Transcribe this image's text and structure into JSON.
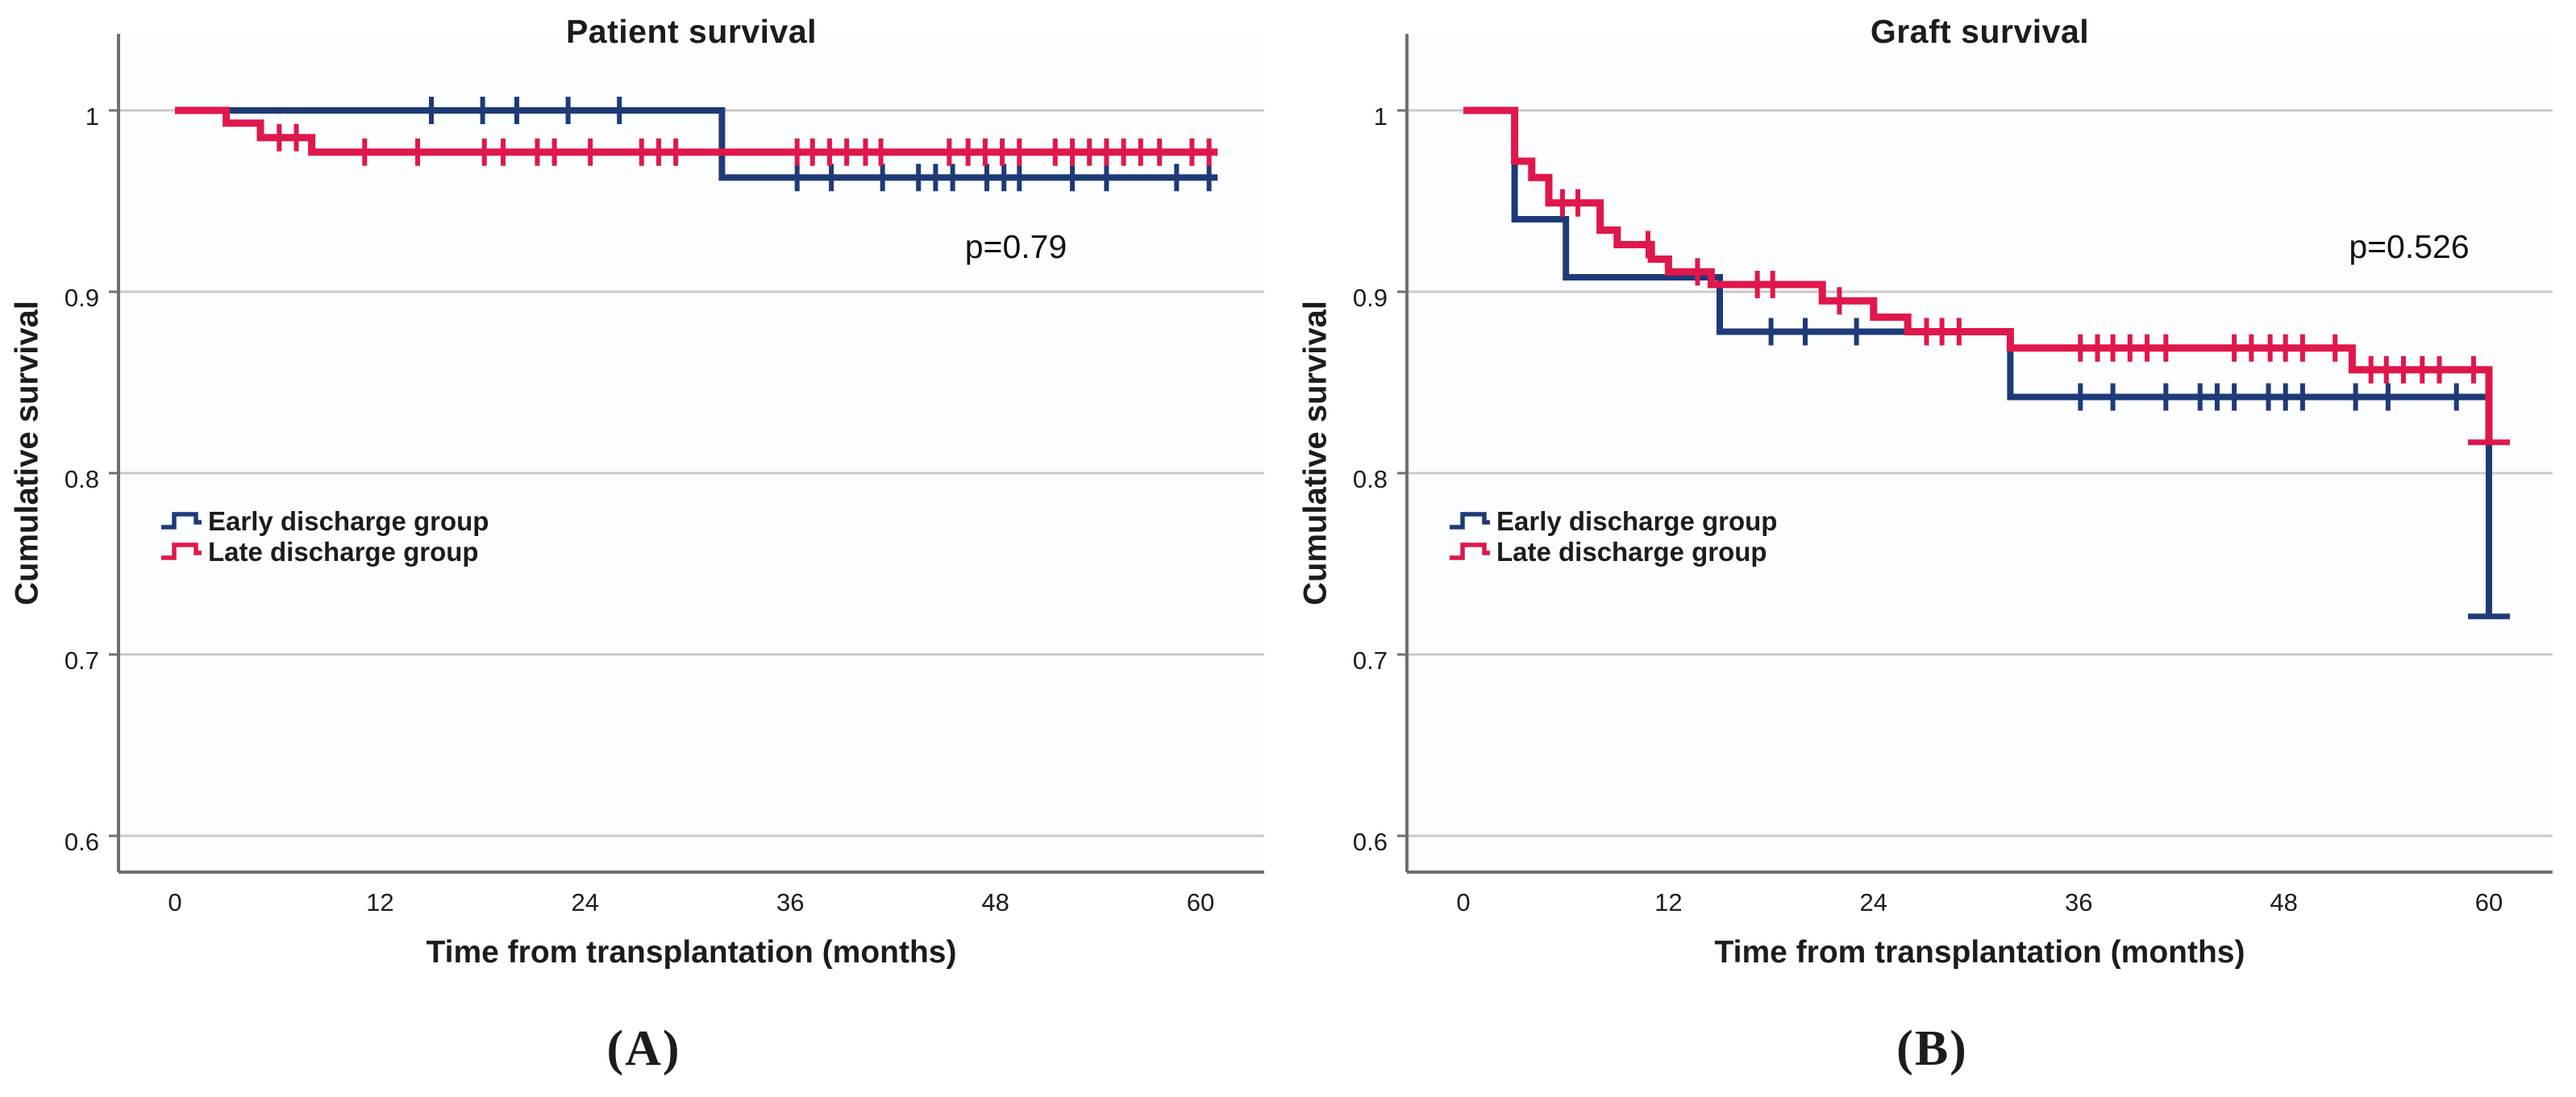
{
  "figure": {
    "colors": {
      "early": "#1e3a78",
      "late": "#e0174b",
      "grid": "#c9c9c9",
      "axis": "#6f6f6f",
      "text": "#1c1c1c",
      "plot_bg": "#fcfdff"
    }
  },
  "chart_data": [
    {
      "type": "line",
      "subtype": "kaplan-meier-step",
      "title": "Patient survival",
      "xlabel": "Time from transplantation (months)",
      "ylabel": "Cumulative survival",
      "annotation": "p=0.79",
      "panel_label": "(A)",
      "grid": "horizontal",
      "legend_position": "left-middle",
      "xlim": [
        -3.3,
        63.7
      ],
      "ylim": [
        0.58,
        1.042
      ],
      "xticks": [
        0,
        12,
        24,
        36,
        48,
        60
      ],
      "xtick_labels": [
        "0",
        "12",
        "24",
        "36",
        "48",
        "60"
      ],
      "yticks": [
        1.0,
        0.9,
        0.8,
        0.7,
        0.6
      ],
      "ytick_labels": [
        "1",
        "0.9",
        "0.8",
        "0.7",
        "0.6"
      ],
      "series": [
        {
          "name": "Early discharge group",
          "color_key": "early",
          "steps": [
            [
              0,
              1.0
            ],
            [
              32,
              0.963
            ]
          ],
          "end": 61,
          "censors": [
            [
              15,
              1.0
            ],
            [
              18,
              1.0
            ],
            [
              20,
              1.0
            ],
            [
              23,
              1.0
            ],
            [
              26,
              1.0
            ],
            [
              36.4,
              0.963
            ],
            [
              38.4,
              0.963
            ],
            [
              41.4,
              0.963
            ],
            [
              43.5,
              0.963
            ],
            [
              44.5,
              0.963
            ],
            [
              45.5,
              0.963
            ],
            [
              47.5,
              0.963
            ],
            [
              48.5,
              0.963
            ],
            [
              49.4,
              0.963
            ],
            [
              52.5,
              0.963
            ],
            [
              54.5,
              0.963
            ],
            [
              58.6,
              0.963
            ],
            [
              60.5,
              0.963
            ]
          ]
        },
        {
          "name": "Late discharge group",
          "color_key": "late",
          "steps": [
            [
              0,
              1.0
            ],
            [
              3,
              0.993
            ],
            [
              5,
              0.985
            ],
            [
              8,
              0.977
            ]
          ],
          "end": 61,
          "censors": [
            [
              6.1,
              0.985
            ],
            [
              7.1,
              0.985
            ],
            [
              11.1,
              0.977
            ],
            [
              14.2,
              0.977
            ],
            [
              18.1,
              0.977
            ],
            [
              19.2,
              0.977
            ],
            [
              21.2,
              0.977
            ],
            [
              22.2,
              0.977
            ],
            [
              24.3,
              0.977
            ],
            [
              27.3,
              0.977
            ],
            [
              28.3,
              0.977
            ],
            [
              29.3,
              0.977
            ],
            [
              36.4,
              0.977
            ],
            [
              37.3,
              0.977
            ],
            [
              38.3,
              0.977
            ],
            [
              39.3,
              0.977
            ],
            [
              40.4,
              0.977
            ],
            [
              41.3,
              0.977
            ],
            [
              45.3,
              0.977
            ],
            [
              46.4,
              0.977
            ],
            [
              47.4,
              0.977
            ],
            [
              48.4,
              0.977
            ],
            [
              49.4,
              0.977
            ],
            [
              51.5,
              0.977
            ],
            [
              52.5,
              0.977
            ],
            [
              53.5,
              0.977
            ],
            [
              54.5,
              0.977
            ],
            [
              55.5,
              0.977
            ],
            [
              56.5,
              0.977
            ],
            [
              57.6,
              0.977
            ],
            [
              59.5,
              0.977
            ],
            [
              60.5,
              0.977
            ]
          ]
        }
      ]
    },
    {
      "type": "line",
      "subtype": "kaplan-meier-step",
      "title": "Graft survival",
      "xlabel": "Time from transplantation (months)",
      "ylabel": "Cumulative survival",
      "annotation": "p=0.526",
      "panel_label": "(B)",
      "grid": "horizontal",
      "legend_position": "left-middle",
      "xlim": [
        -3.3,
        63.7
      ],
      "ylim": [
        0.58,
        1.042
      ],
      "xticks": [
        0,
        12,
        24,
        36,
        48,
        60
      ],
      "xtick_labels": [
        "0",
        "12",
        "24",
        "36",
        "48",
        "60"
      ],
      "yticks": [
        1.0,
        0.9,
        0.8,
        0.7,
        0.6
      ],
      "ytick_labels": [
        "1",
        "0.9",
        "0.8",
        "0.7",
        "0.6"
      ],
      "series": [
        {
          "name": "Early discharge group",
          "color_key": "early",
          "steps": [
            [
              0,
              1.0
            ],
            [
              3,
              0.94
            ],
            [
              6,
              0.908
            ],
            [
              15,
              0.878
            ],
            [
              32,
              0.842
            ]
          ],
          "end": 60,
          "drop_to": 0.721,
          "censors": [
            [
              18,
              0.878
            ],
            [
              20,
              0.878
            ],
            [
              23,
              0.878
            ],
            [
              36.1,
              0.842
            ],
            [
              38,
              0.842
            ],
            [
              41.1,
              0.842
            ],
            [
              43.1,
              0.842
            ],
            [
              44.1,
              0.842
            ],
            [
              45.1,
              0.842
            ],
            [
              47.1,
              0.842
            ],
            [
              48.1,
              0.842
            ],
            [
              49.1,
              0.842
            ],
            [
              52.2,
              0.842
            ],
            [
              54.1,
              0.842
            ],
            [
              58.1,
              0.842
            ]
          ]
        },
        {
          "name": "Late discharge group",
          "color_key": "late",
          "steps": [
            [
              0,
              1.0
            ],
            [
              3,
              0.972
            ],
            [
              4,
              0.963
            ],
            [
              5,
              0.949
            ],
            [
              8,
              0.934
            ],
            [
              9,
              0.926
            ],
            [
              11,
              0.918
            ],
            [
              12,
              0.911
            ],
            [
              14.5,
              0.904
            ],
            [
              21,
              0.895
            ],
            [
              24,
              0.886
            ],
            [
              26,
              0.878
            ],
            [
              32,
              0.869
            ],
            [
              52,
              0.857
            ]
          ],
          "end": 60,
          "drop_to": 0.817,
          "censors": [
            [
              5.8,
              0.949
            ],
            [
              6.7,
              0.949
            ],
            [
              10.8,
              0.926
            ],
            [
              13.7,
              0.911
            ],
            [
              17.2,
              0.904
            ],
            [
              18.1,
              0.904
            ],
            [
              22,
              0.895
            ],
            [
              27.1,
              0.878
            ],
            [
              28,
              0.878
            ],
            [
              29,
              0.878
            ],
            [
              36.1,
              0.869
            ],
            [
              37.1,
              0.869
            ],
            [
              38,
              0.869
            ],
            [
              39,
              0.869
            ],
            [
              40,
              0.869
            ],
            [
              41.1,
              0.869
            ],
            [
              45.1,
              0.869
            ],
            [
              46.1,
              0.869
            ],
            [
              47.2,
              0.869
            ],
            [
              48.1,
              0.869
            ],
            [
              49.1,
              0.869
            ],
            [
              51,
              0.869
            ],
            [
              53.1,
              0.857
            ],
            [
              54,
              0.857
            ],
            [
              55,
              0.857
            ],
            [
              56.1,
              0.857
            ],
            [
              57.1,
              0.857
            ],
            [
              59.1,
              0.857
            ]
          ]
        }
      ]
    }
  ]
}
